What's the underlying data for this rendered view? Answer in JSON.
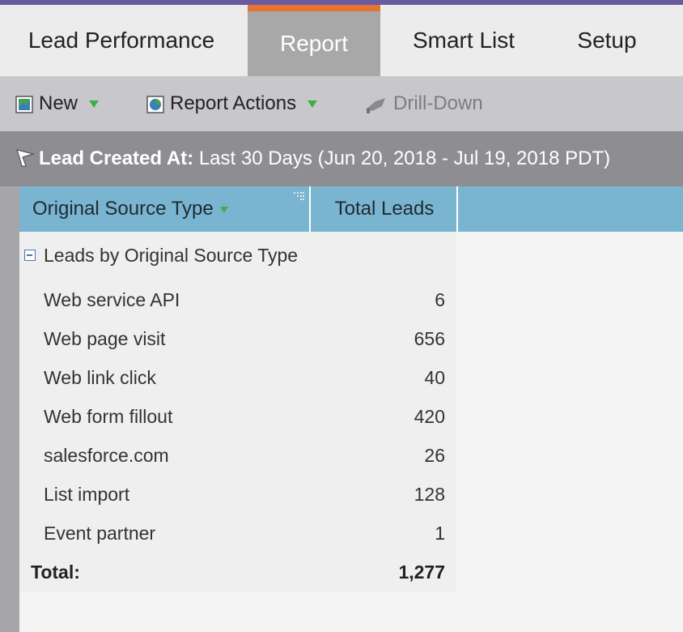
{
  "tabs": [
    {
      "label": "Lead Performance"
    },
    {
      "label": "Report"
    },
    {
      "label": "Smart List"
    },
    {
      "label": "Setup"
    }
  ],
  "active_tab": "Report",
  "toolbar": {
    "new_label": "New",
    "report_actions_label": "Report Actions",
    "drill_down_label": "Drill-Down"
  },
  "filter": {
    "name": "Lead Created At:",
    "value": "Last 30 Days (Jun 20, 2018 - Jul 19, 2018 PDT)"
  },
  "table": {
    "columns": [
      "Original Source Type",
      "Total Leads"
    ],
    "group_label": "Leads by Original Source Type",
    "rows": [
      {
        "label": "Web service API",
        "value": "6"
      },
      {
        "label": "Web page visit",
        "value": "656"
      },
      {
        "label": "Web link click",
        "value": "40"
      },
      {
        "label": "Web form fillout",
        "value": "420"
      },
      {
        "label": "salesforce.com",
        "value": "26"
      },
      {
        "label": "List import",
        "value": "128"
      },
      {
        "label": "Event partner",
        "value": "1"
      }
    ],
    "total_label": "Total:",
    "total_value": "1,277"
  },
  "colors": {
    "accent_tab_top": "#e57434",
    "header_blue": "#79b4d0",
    "caret_green": "#3fae49"
  }
}
